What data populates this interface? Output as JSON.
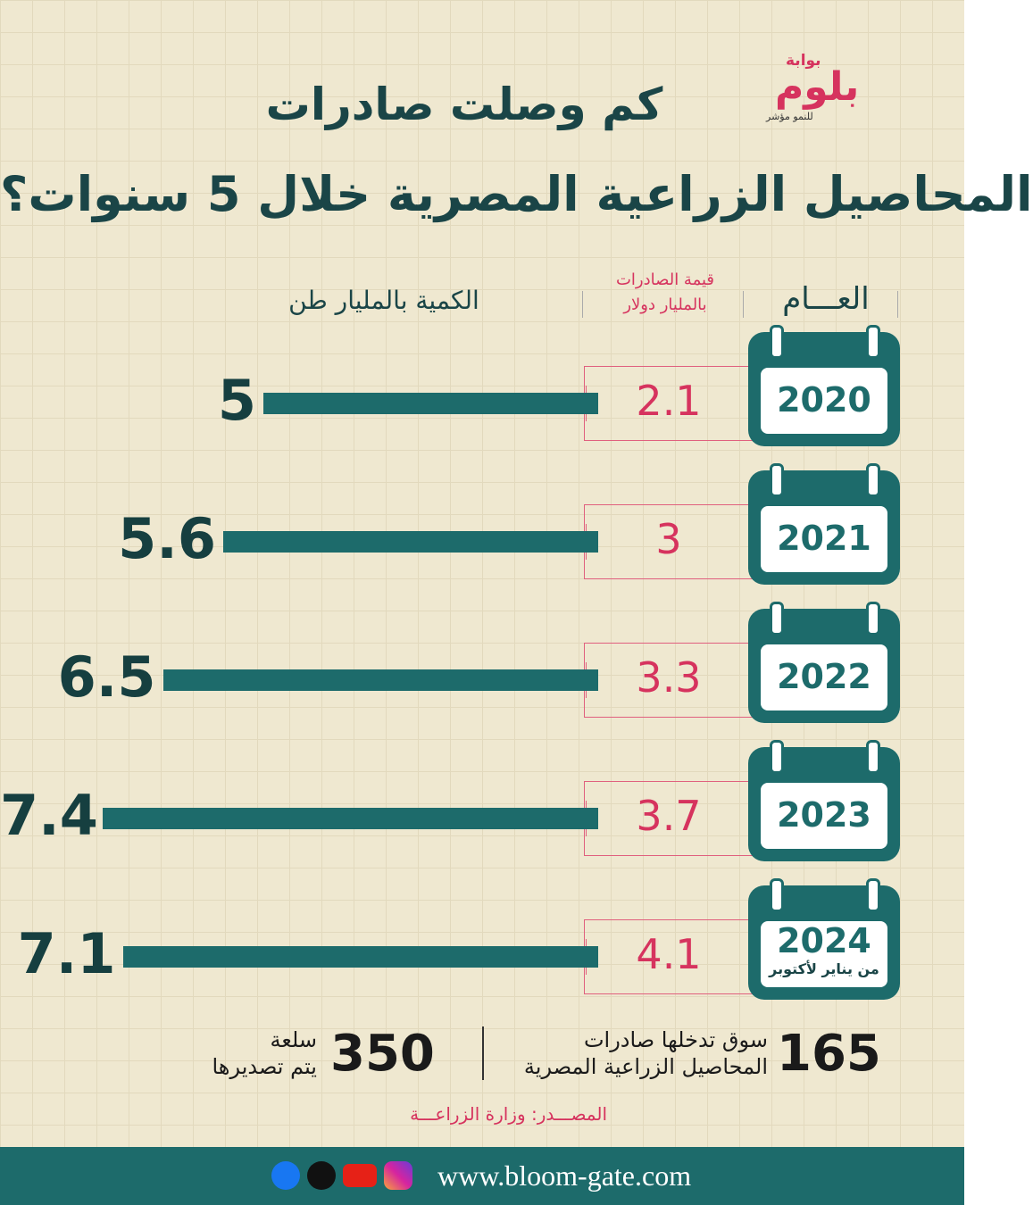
{
  "logo": {
    "top": "بوابة",
    "name": "بلوم",
    "tagline": "للنمو مؤشر"
  },
  "chart_data": {
    "type": "bar",
    "title": "كم وصلت صادرات",
    "subtitle": "المحاصيل الزراعية المصرية خلال 5 سنوات؟",
    "category_header": "العـــام",
    "categories": [
      "2020",
      "2021",
      "2022",
      "2023",
      "2024"
    ],
    "annotation": "من يناير لأكتوبر",
    "series": [
      {
        "name": "الكمية بالمليار طن",
        "color": "#1d6b6b",
        "values": [
          5,
          5.6,
          6.5,
          7.4,
          7.1
        ]
      },
      {
        "name": "قيمة الصادرات بالمليار دولار",
        "color": "#d6335e",
        "values": [
          2.1,
          3,
          3.3,
          3.7,
          4.1
        ]
      }
    ]
  },
  "stats": [
    {
      "value": 165,
      "lines": [
        "سوق تدخلها صادرات",
        "المحاصيل الزراعية المصرية"
      ]
    },
    {
      "value": 350,
      "lines": [
        "سلعة",
        "يتم تصديرها"
      ]
    }
  ],
  "source": "المصـــدر: وزارة الزراعـــة",
  "footer": {
    "url": "www.bloom-gate.com"
  }
}
